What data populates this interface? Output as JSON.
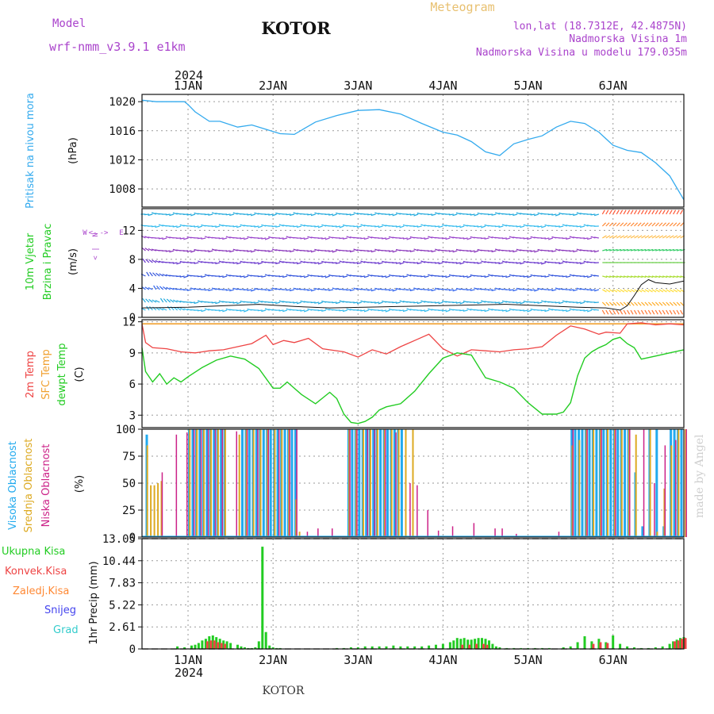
{
  "header": {
    "model_label": "Model",
    "model_name": "wrf-nmm_v3.9.1 e1km",
    "station": "KOTOR",
    "product": "Meteogram",
    "coords": "lon,lat (18.7312E, 42.4875N)",
    "elevation": "Nadmorska Visina 1m",
    "model_elevation": "Nadmorska Visina u modelu 179.035m",
    "credit": "made by Angel",
    "footer_station": "KOTOR"
  },
  "time_axis": {
    "year": "2024",
    "day_labels": [
      "1JAN",
      "2JAN",
      "3JAN",
      "4JAN",
      "5JAN",
      "6JAN"
    ],
    "range_hours": [
      -13,
      140
    ]
  },
  "colors": {
    "pressure": "#33aaee",
    "temp2m": "#ee4444",
    "sfc": "#f0a030",
    "dew": "#22cc22",
    "high_cloud": "#22aaee",
    "mid_cloud": "#ddaa22",
    "low_cloud": "#cc2288",
    "precip_total": "#22cc22",
    "precip_conv": "#ee4444",
    "precip_ice": "#ff8833",
    "snow": "#4444ee",
    "hail": "#33cccc",
    "model_text": "#aa44cc",
    "title_text": "#e8c070"
  },
  "chart_data": [
    {
      "type": "line",
      "title": "Pritisak na nivou mora",
      "ylabel": "(hPa)",
      "ylim": [
        1005.5,
        1021
      ],
      "yticks": [
        1008,
        1012,
        1016,
        1020
      ],
      "x_unit": "hours since 2024-01-01 00:00",
      "grid": true,
      "series": [
        {
          "x": [
            -13,
            -9,
            -5,
            -1,
            0,
            2,
            6,
            9,
            14,
            18,
            22,
            26,
            30,
            36,
            42,
            48,
            54,
            60,
            66,
            72,
            76,
            80,
            84,
            88,
            92,
            96,
            100,
            104,
            108,
            112,
            116,
            120,
            124,
            128,
            132,
            136,
            140
          ],
          "values": [
            1020.2,
            1020.0,
            1020.0,
            1020.0,
            1019.6,
            1018.6,
            1017.3,
            1017.3,
            1016.5,
            1016.8,
            1016.2,
            1015.6,
            1015.5,
            1017.2,
            1018.1,
            1018.8,
            1018.9,
            1018.3,
            1017.0,
            1015.8,
            1015.4,
            1014.5,
            1013.1,
            1012.6,
            1014.2,
            1014.8,
            1015.3,
            1016.5,
            1017.3,
            1017.0,
            1015.8,
            1014.0,
            1013.3,
            1013.0,
            1011.6,
            1009.8,
            1006.5
          ]
        }
      ]
    },
    {
      "type": "line",
      "title": "10m Vjetar Brzina i Pravac",
      "ylabel": "(m/s)",
      "ylim": [
        0,
        15
      ],
      "yticks": [
        0,
        4,
        8,
        12
      ],
      "compass": [
        "N",
        "S",
        "W",
        "E"
      ],
      "grid": true,
      "series": [
        {
          "x": [
            -13,
            0,
            10,
            20,
            30,
            40,
            50,
            60,
            70,
            80,
            90,
            100,
            110,
            118,
            122,
            124,
            126,
            128,
            130,
            132,
            136,
            140
          ],
          "values": [
            1.3,
            1.4,
            1.6,
            1.8,
            1.5,
            1.3,
            1.4,
            1.5,
            1.6,
            1.7,
            1.8,
            1.6,
            1.4,
            1.3,
            1.0,
            1.6,
            3.0,
            4.5,
            5.2,
            4.8,
            4.6,
            5.0
          ]
        }
      ]
    },
    {
      "type": "line",
      "title": "2m Temp / SFC Temp / dewpt Temp",
      "ylabel": "(C)",
      "ylim": [
        1.8,
        12.2
      ],
      "yticks": [
        3,
        6,
        9,
        12
      ],
      "grid": true,
      "series": [
        {
          "name": "2m Temp",
          "x": [
            -13,
            -12,
            -10,
            -6,
            -2,
            2,
            6,
            10,
            14,
            18,
            22,
            24,
            27,
            30,
            34,
            38,
            44,
            48,
            52,
            56,
            60,
            64,
            68,
            72,
            76,
            80,
            84,
            88,
            92,
            96,
            100,
            104,
            108,
            112,
            116,
            118,
            122,
            124,
            128,
            132,
            136,
            140
          ],
          "values": [
            11.8,
            10.0,
            9.5,
            9.4,
            9.1,
            9.0,
            9.2,
            9.3,
            9.6,
            9.9,
            10.7,
            9.8,
            10.2,
            10.0,
            10.4,
            9.4,
            9.1,
            8.6,
            9.3,
            8.9,
            9.6,
            10.2,
            10.8,
            9.4,
            8.7,
            9.3,
            9.2,
            9.1,
            9.3,
            9.4,
            9.6,
            10.7,
            11.6,
            11.3,
            10.8,
            11.0,
            10.9,
            11.8,
            11.9,
            11.7,
            11.8,
            11.7
          ]
        },
        {
          "name": "SFC Temp",
          "x": [
            -13,
            140
          ],
          "values": [
            11.8,
            11.8
          ]
        },
        {
          "name": "dewpt Temp",
          "x": [
            -13,
            -12,
            -10,
            -8,
            -6,
            -4,
            -2,
            0,
            4,
            8,
            12,
            16,
            20,
            24,
            26,
            28,
            32,
            36,
            40,
            42,
            44,
            46,
            48,
            50,
            52,
            54,
            56,
            60,
            64,
            68,
            72,
            76,
            80,
            84,
            88,
            92,
            96,
            100,
            104,
            106,
            108,
            110,
            112,
            114,
            116,
            118,
            120,
            122,
            124,
            126,
            128,
            132,
            136,
            140
          ],
          "values": [
            9.5,
            7.2,
            6.2,
            7.0,
            6.0,
            6.6,
            6.2,
            6.7,
            7.6,
            8.3,
            8.7,
            8.4,
            7.5,
            5.6,
            5.6,
            6.2,
            5.0,
            4.1,
            5.2,
            4.6,
            3.1,
            2.3,
            2.2,
            2.4,
            2.8,
            3.5,
            3.8,
            4.1,
            5.3,
            7.0,
            8.5,
            9.0,
            8.8,
            6.6,
            6.2,
            5.6,
            4.2,
            3.1,
            3.1,
            3.3,
            4.2,
            6.8,
            8.5,
            9.1,
            9.5,
            9.8,
            10.3,
            10.5,
            9.9,
            9.5,
            8.4,
            8.7,
            9.0,
            9.3
          ]
        }
      ]
    },
    {
      "type": "bar",
      "title": "Visoka Oblacnost / Srednja Oblacnost / Niska Oblacnost",
      "ylabel": "(%)",
      "ylim": [
        0,
        100
      ],
      "yticks": [
        0,
        25,
        50,
        75,
        100
      ],
      "grid": true,
      "series": [
        {
          "name": "Visoka Oblacnost",
          "x": [
            -12,
            0,
            1,
            2,
            3,
            4,
            5,
            6,
            7,
            8,
            9,
            10,
            15,
            16,
            17,
            18,
            19,
            20,
            21,
            22,
            23,
            24,
            25,
            26,
            27,
            28,
            29,
            30,
            45,
            46,
            47,
            48,
            49,
            50,
            51,
            52,
            53,
            54,
            55,
            56,
            57,
            58,
            59,
            60,
            108,
            109,
            110,
            111,
            112,
            113,
            114,
            115,
            116,
            117,
            118,
            119,
            120,
            121,
            122,
            123,
            124,
            126,
            128,
            130,
            132,
            134,
            136,
            137,
            138,
            139
          ],
          "values": [
            95,
            100,
            100,
            100,
            100,
            100,
            100,
            100,
            100,
            100,
            100,
            100,
            100,
            100,
            100,
            100,
            100,
            100,
            100,
            100,
            100,
            100,
            100,
            100,
            100,
            100,
            100,
            100,
            100,
            100,
            100,
            100,
            100,
            100,
            100,
            100,
            100,
            100,
            100,
            100,
            100,
            100,
            100,
            100,
            100,
            100,
            100,
            100,
            100,
            100,
            100,
            100,
            100,
            100,
            100,
            100,
            100,
            100,
            100,
            100,
            100,
            60,
            10,
            100,
            100,
            10,
            100,
            100,
            100,
            100
          ]
        },
        {
          "name": "Srednja Oblacnost",
          "x": [
            -12,
            -11,
            -10,
            -9,
            -8,
            0,
            2,
            4,
            6,
            8,
            10,
            14,
            16,
            18,
            20,
            22,
            24,
            26,
            28,
            30,
            31,
            45,
            47,
            49,
            51,
            53,
            55,
            57,
            59,
            61,
            63,
            108,
            110,
            112,
            114,
            116,
            118,
            120,
            122,
            124,
            126,
            130,
            132,
            134,
            136,
            138,
            140
          ],
          "values": [
            85,
            48,
            48,
            50,
            52,
            100,
            100,
            100,
            100,
            100,
            100,
            95,
            100,
            100,
            100,
            100,
            100,
            100,
            100,
            35,
            5,
            100,
            100,
            100,
            100,
            100,
            100,
            100,
            100,
            100,
            100,
            85,
            90,
            100,
            100,
            100,
            100,
            100,
            100,
            100,
            95,
            100,
            5,
            45,
            85,
            100,
            100
          ]
        },
        {
          "name": "Niska Oblacnost",
          "x": [
            -8,
            -4,
            -1,
            1,
            3,
            5,
            7,
            9,
            13,
            16,
            19,
            22,
            25,
            28,
            30,
            33,
            36,
            40,
            45,
            47,
            50,
            52,
            55,
            58,
            62,
            64,
            67,
            70,
            74,
            80,
            86,
            88,
            92,
            104,
            108,
            112,
            116,
            120,
            124,
            128,
            131,
            134,
            137,
            140
          ],
          "values": [
            60,
            95,
            97,
            100,
            100,
            100,
            100,
            100,
            98,
            100,
            100,
            100,
            100,
            100,
            100,
            5,
            8,
            8,
            100,
            100,
            100,
            100,
            100,
            97,
            50,
            48,
            25,
            6,
            10,
            13,
            8,
            8,
            3,
            5,
            100,
            100,
            100,
            100,
            100,
            100,
            50,
            85,
            90,
            100
          ]
        }
      ]
    },
    {
      "type": "bar",
      "title": "1hr Precip",
      "ylabel": "1hr Precip (mm)",
      "ylim": [
        0,
        13.05
      ],
      "yticks": [
        0,
        2.61,
        5.22,
        7.83,
        10.44,
        13.05
      ],
      "grid": true,
      "legend": [
        "Ukupna Kisa",
        "Konvek.Kisa",
        "Zaledj.Kisa",
        "Snijeg",
        "Grad"
      ],
      "series": [
        {
          "name": "Ukupna Kisa",
          "x": [
            -3,
            -1,
            1,
            2,
            3,
            4,
            5,
            6,
            7,
            8,
            9,
            10,
            11,
            12,
            14,
            15,
            16,
            17,
            18,
            19,
            20,
            21,
            22,
            23,
            24,
            25,
            26,
            42,
            44,
            46,
            48,
            50,
            52,
            54,
            56,
            58,
            60,
            62,
            64,
            66,
            68,
            70,
            72,
            74,
            75,
            76,
            77,
            78,
            79,
            80,
            81,
            82,
            83,
            84,
            85,
            86,
            87,
            88,
            90,
            92,
            94,
            96,
            98,
            100,
            102,
            106,
            108,
            110,
            112,
            114,
            116,
            118,
            120,
            122,
            124,
            126,
            128,
            130,
            132,
            134,
            136,
            137,
            138,
            139,
            140
          ],
          "values": [
            0.3,
            0.2,
            0.4,
            0.5,
            0.7,
            1.0,
            1.2,
            1.5,
            1.6,
            1.4,
            1.2,
            1.0,
            0.9,
            0.7,
            0.5,
            0.3,
            0.2,
            0.1,
            0.1,
            0.2,
            0.9,
            12.1,
            2.0,
            0.4,
            0.2,
            0.1,
            0.1,
            0.1,
            0.1,
            0.2,
            0.2,
            0.3,
            0.3,
            0.3,
            0.3,
            0.4,
            0.3,
            0.3,
            0.3,
            0.3,
            0.4,
            0.5,
            0.6,
            0.8,
            1.0,
            1.3,
            1.2,
            1.3,
            1.1,
            1.1,
            1.2,
            1.3,
            1.3,
            1.2,
            1.0,
            0.6,
            0.3,
            0.2,
            0.1,
            0.1,
            0.1,
            0.1,
            0.1,
            0.1,
            0.1,
            0.2,
            0.3,
            0.8,
            1.5,
            0.9,
            1.2,
            0.8,
            1.6,
            0.6,
            0.3,
            0.2,
            0.1,
            0.1,
            0.2,
            0.3,
            0.6,
            0.9,
            1.1,
            1.3,
            1.4
          ]
        },
        {
          "name": "Konvek.Kisa",
          "x": [
            5,
            6,
            7,
            8,
            9,
            10,
            77,
            79,
            81,
            83,
            84,
            114,
            116,
            118,
            137,
            138,
            139,
            140
          ],
          "values": [
            0.9,
            1.0,
            1.0,
            0.8,
            0.7,
            0.6,
            0.5,
            0.5,
            0.6,
            0.6,
            0.5,
            0.6,
            0.8,
            0.7,
            0.9,
            1.0,
            1.2,
            1.3
          ]
        },
        {
          "name": "Zaledj.Kisa",
          "x": [],
          "values": []
        },
        {
          "name": "Snijeg",
          "x": [],
          "values": []
        },
        {
          "name": "Grad",
          "x": [],
          "values": []
        }
      ]
    }
  ]
}
